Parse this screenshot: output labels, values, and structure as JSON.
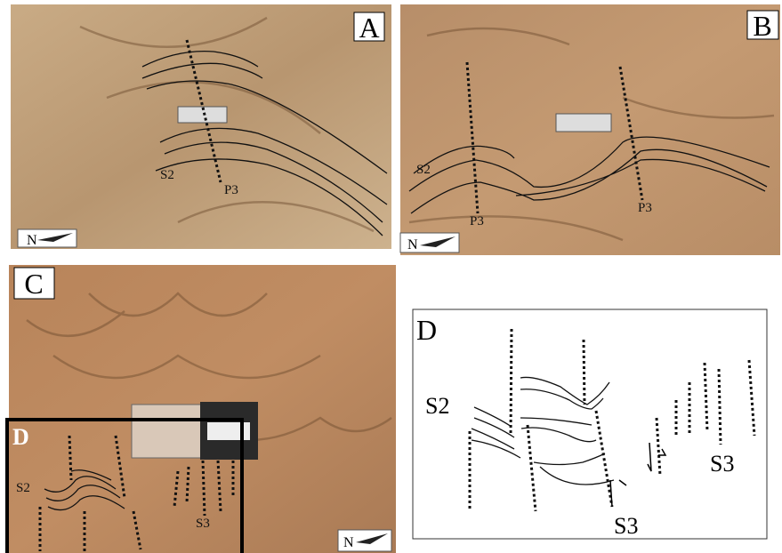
{
  "panels": [
    {
      "label": "A",
      "north": "N",
      "annotations": [
        "S2",
        "P3"
      ]
    },
    {
      "label": "B",
      "north": "N",
      "annotations": [
        "S2",
        "P3",
        "P3"
      ]
    },
    {
      "label": "C",
      "north": "N",
      "inset_label": "D",
      "annotations": [
        "S2",
        "S3"
      ]
    },
    {
      "label": "D",
      "annotations": [
        "S2",
        "S3",
        "S3"
      ]
    }
  ]
}
